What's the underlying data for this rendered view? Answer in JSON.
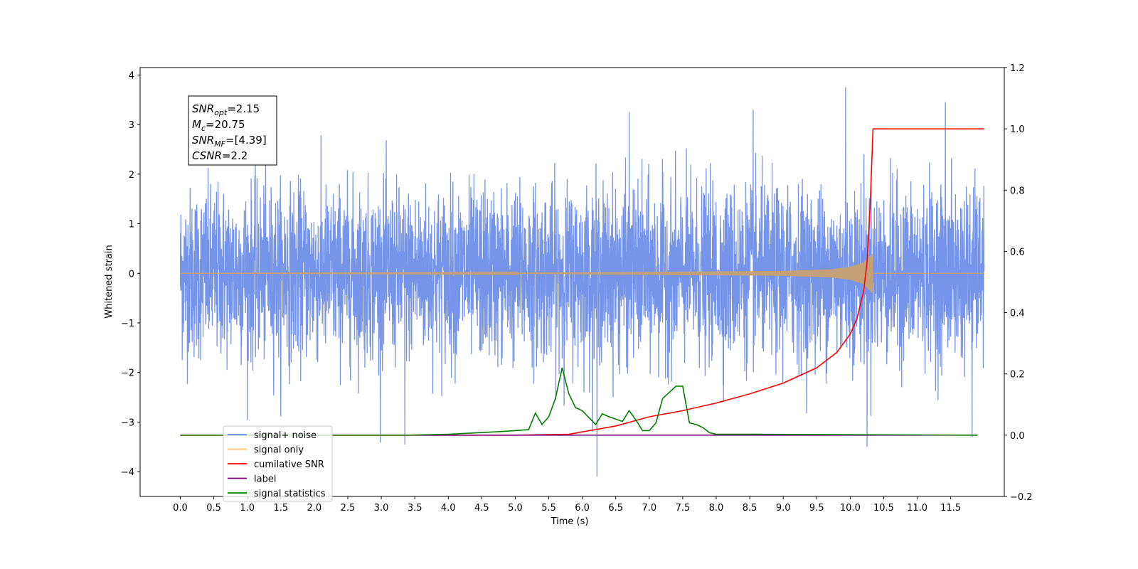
{
  "chart_data": {
    "type": "line",
    "title": "",
    "xlabel": "Time (s)",
    "ylabel": "Whitened strain",
    "xlim": [
      -0.6,
      12.3
    ],
    "ylim": [
      -4.5,
      4.15
    ],
    "y2lim": [
      -0.2,
      1.2
    ],
    "grid": false,
    "legend_placement": "lower-left",
    "x_ticks": [
      "0.0",
      "0.5",
      "1.0",
      "1.5",
      "2.0",
      "2.5",
      "3.0",
      "3.5",
      "4.0",
      "4.5",
      "5.0",
      "5.5",
      "6.0",
      "6.5",
      "7.0",
      "7.5",
      "8.0",
      "8.5",
      "9.0",
      "9.5",
      "10.0",
      "10.5",
      "11.0",
      "11.5"
    ],
    "y_ticks": [
      "4",
      "3",
      "2",
      "1",
      "0",
      "−1",
      "−2",
      "−3",
      "−4"
    ],
    "y2_ticks": [
      "1.2",
      "1.0",
      "0.8",
      "0.6",
      "0.4",
      "0.2",
      "0.0",
      "−0.2"
    ],
    "annotation": {
      "lines": [
        {
          "base": "SNR",
          "sub": "opt",
          "text": "=2.15"
        },
        {
          "base": "M",
          "sub": "c",
          "text": "=20.75"
        },
        {
          "base": "SNR",
          "sub": "MF",
          "text": "=[4.39]"
        },
        {
          "base": "CSNR",
          "sub": "",
          "text": "=2.2"
        }
      ]
    },
    "legend": [
      {
        "label": "signal+ noise",
        "color": "#6688e8"
      },
      {
        "label": "signal only",
        "color": "#ffc060"
      },
      {
        "label": "cumilative SNR",
        "color": "#ff0000"
      },
      {
        "label": "label",
        "color": "#800080"
      },
      {
        "label": "signal statistics",
        "color": "#008000"
      }
    ],
    "series": [
      {
        "name": "signal+ noise",
        "axis": "left",
        "color": "#6688e8",
        "envelope": {
          "x_start": 0.0,
          "x_end": 12.0,
          "typical_range": [
            -2.0,
            2.0
          ],
          "max": 3.75,
          "min": -4.1
        },
        "spikes": [
          {
            "x": 9.93,
            "y": 3.75
          },
          {
            "x": 6.22,
            "y": -4.1
          },
          {
            "x": 10.25,
            "y": -3.5
          },
          {
            "x": 3.35,
            "y": -3.45
          },
          {
            "x": 11.82,
            "y": -3.3
          },
          {
            "x": 11.42,
            "y": 3.45
          },
          {
            "x": 8.55,
            "y": 3.3
          },
          {
            "x": 6.7,
            "y": 3.25
          }
        ]
      },
      {
        "name": "signal only",
        "axis": "left",
        "color": "#c8a070",
        "envelope": {
          "x": [
            0.0,
            5.0,
            9.0,
            9.7,
            10.0,
            10.2,
            10.33,
            10.34
          ],
          "amplitude": [
            0.0,
            0.01,
            0.05,
            0.08,
            0.13,
            0.22,
            0.4,
            0.0
          ]
        }
      },
      {
        "name": "cumilative SNR",
        "axis": "right",
        "color": "#ff0000",
        "x": [
          0.0,
          5.0,
          5.8,
          6.5,
          7.0,
          7.5,
          8.0,
          8.5,
          9.0,
          9.5,
          9.8,
          10.0,
          10.1,
          10.2,
          10.25,
          10.3,
          10.34,
          12.0
        ],
        "y": [
          0.0,
          0.0,
          0.003,
          0.03,
          0.06,
          0.08,
          0.105,
          0.135,
          0.17,
          0.22,
          0.27,
          0.33,
          0.38,
          0.47,
          0.56,
          0.76,
          1.0,
          1.0
        ]
      },
      {
        "name": "label",
        "axis": "right",
        "color": "#800080",
        "x": [
          0.0,
          11.9
        ],
        "y": [
          0.0,
          0.0
        ]
      },
      {
        "name": "signal statistics",
        "axis": "right",
        "color": "#008000",
        "x": [
          0.0,
          3.4,
          4.0,
          4.8,
          5.2,
          5.3,
          5.4,
          5.5,
          5.6,
          5.7,
          5.8,
          5.9,
          6.0,
          6.2,
          6.3,
          6.4,
          6.6,
          6.7,
          6.8,
          6.9,
          7.0,
          7.1,
          7.2,
          7.3,
          7.4,
          7.5,
          7.6,
          7.7,
          7.8,
          7.9,
          8.0,
          8.6,
          11.9
        ],
        "y": [
          0.0,
          0.0,
          0.003,
          0.012,
          0.018,
          0.072,
          0.035,
          0.06,
          0.12,
          0.22,
          0.135,
          0.09,
          0.08,
          0.035,
          0.07,
          0.06,
          0.045,
          0.08,
          0.05,
          0.015,
          0.015,
          0.04,
          0.12,
          0.14,
          0.16,
          0.16,
          0.04,
          0.035,
          0.025,
          0.008,
          0.003,
          0.003,
          0.0
        ]
      }
    ]
  }
}
